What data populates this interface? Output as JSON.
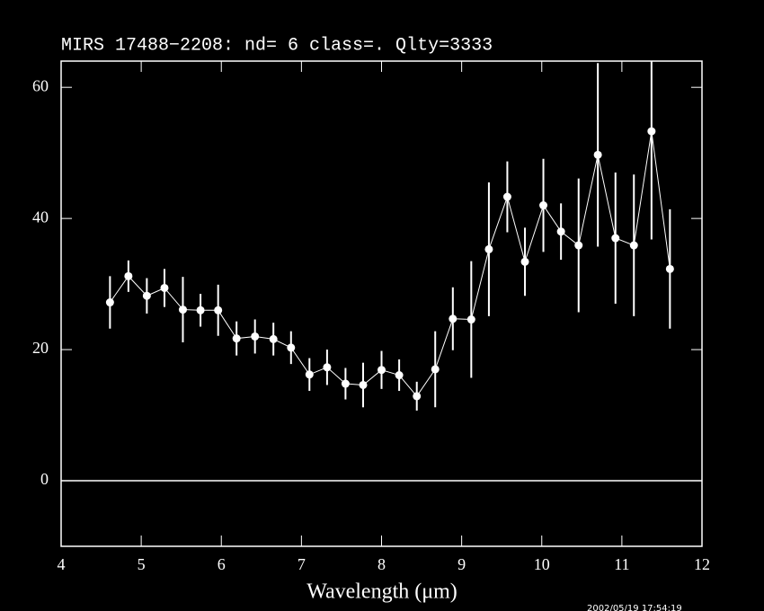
{
  "chart_data": {
    "type": "errorbar",
    "title": "MIRS 17488−2208:    nd= 6   class=.   Qlty=3333",
    "x_label": "Wavelength (μm)",
    "timestamp": "2002/05/19 17:54:19",
    "color": "#ffffff",
    "x": [
      4.61,
      4.84,
      5.07,
      5.29,
      5.52,
      5.74,
      5.96,
      6.19,
      6.42,
      6.65,
      6.87,
      7.1,
      7.32,
      7.55,
      7.77,
      8.0,
      8.22,
      8.44,
      8.67,
      8.89,
      9.12,
      9.34,
      9.57,
      9.79,
      10.02,
      10.24,
      10.46,
      10.7,
      10.92,
      11.15,
      11.37,
      11.6
    ],
    "values": [
      27.2,
      31.2,
      28.2,
      29.4,
      26.1,
      26.0,
      26.0,
      21.7,
      22.0,
      21.6,
      20.3,
      16.2,
      17.3,
      14.8,
      14.6,
      16.9,
      16.1,
      12.9,
      17.0,
      24.7,
      24.6,
      35.3,
      43.3,
      33.4,
      42.0,
      38.0,
      35.9,
      49.7,
      37.0,
      35.9,
      53.3,
      32.3
    ],
    "errors": [
      4.0,
      2.4,
      2.7,
      2.9,
      5.0,
      2.5,
      3.9,
      2.6,
      2.6,
      2.5,
      2.5,
      2.5,
      2.7,
      2.4,
      3.4,
      2.9,
      2.4,
      2.2,
      5.8,
      4.8,
      8.9,
      10.2,
      5.4,
      5.2,
      7.1,
      4.3,
      10.2,
      14.0,
      10.0,
      10.8,
      16.5,
      9.1
    ],
    "xlim": [
      4,
      12
    ],
    "xticks": [
      4,
      5,
      6,
      7,
      8,
      9,
      10,
      11,
      12
    ],
    "ylim": [
      -10,
      64
    ],
    "yticks": [
      0,
      20,
      40,
      60
    ]
  }
}
